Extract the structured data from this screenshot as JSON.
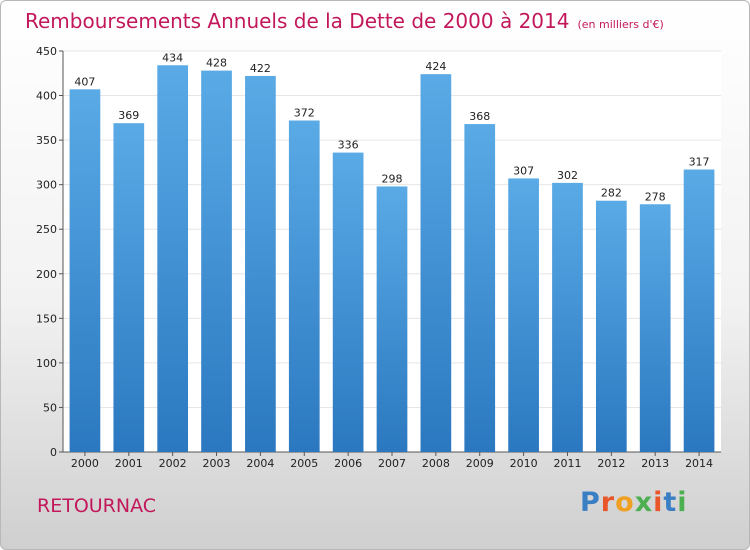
{
  "title": "Remboursements Annuels de la Dette de 2000 à 2014",
  "subtitle": "(en milliers d'€)",
  "commune": "RETOURNAC",
  "logo": {
    "text": "Proxiti",
    "colors": [
      "#3a7fc4",
      "#e8562a",
      "#f0a020",
      "#4caf50",
      "#e8562a",
      "#3a7fc4",
      "#4caf50"
    ]
  },
  "colors": {
    "bar_top": "#5aaae6",
    "bar_bottom": "#2b78c0",
    "title": "#c2185b",
    "grid": "#e6e6e6"
  },
  "chart_data": {
    "type": "bar",
    "categories": [
      "2000",
      "2001",
      "2002",
      "2003",
      "2004",
      "2005",
      "2006",
      "2007",
      "2008",
      "2009",
      "2010",
      "2011",
      "2012",
      "2013",
      "2014"
    ],
    "values": [
      407,
      369,
      434,
      428,
      422,
      372,
      336,
      298,
      424,
      368,
      307,
      302,
      282,
      278,
      317
    ],
    "ylim": [
      0,
      450
    ],
    "yticks": [
      0,
      50,
      100,
      150,
      200,
      250,
      300,
      350,
      400,
      450
    ],
    "grid": true,
    "data_labels": true
  }
}
